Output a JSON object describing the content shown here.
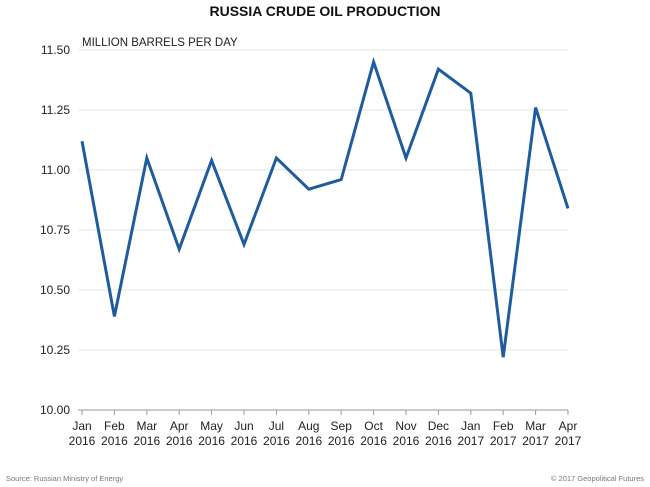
{
  "chart_data": {
    "type": "line",
    "title": "RUSSIA CRUDE OIL PRODUCTION",
    "ylabel": "MILLION BARRELS PER DAY",
    "xlabel": "",
    "ylim": [
      10.0,
      11.5
    ],
    "yticks": [
      "10.00",
      "10.25",
      "10.50",
      "10.75",
      "11.00",
      "11.25",
      "11.50"
    ],
    "grid": true,
    "categories": [
      [
        "Jan",
        "2016"
      ],
      [
        "Feb",
        "2016"
      ],
      [
        "Mar",
        "2016"
      ],
      [
        "Apr",
        "2016"
      ],
      [
        "May",
        "2016"
      ],
      [
        "Jun",
        "2016"
      ],
      [
        "Jul",
        "2016"
      ],
      [
        "Aug",
        "2016"
      ],
      [
        "Sep",
        "2016"
      ],
      [
        "Oct",
        "2016"
      ],
      [
        "Nov",
        "2016"
      ],
      [
        "Dec",
        "2016"
      ],
      [
        "Jan",
        "2017"
      ],
      [
        "Feb",
        "2017"
      ],
      [
        "Mar",
        "2017"
      ],
      [
        "Apr",
        "2017"
      ]
    ],
    "series": [
      {
        "name": "Russia crude oil production",
        "color": "#1f5c9e",
        "values": [
          11.12,
          10.39,
          11.05,
          10.67,
          11.04,
          10.69,
          11.05,
          10.92,
          10.96,
          11.45,
          11.05,
          11.42,
          11.32,
          10.22,
          11.26,
          10.84
        ]
      }
    ]
  },
  "footer": {
    "source": "Source:  Russian Ministry of Energy",
    "copyright": "© 2017 Geopolitical Futures"
  }
}
